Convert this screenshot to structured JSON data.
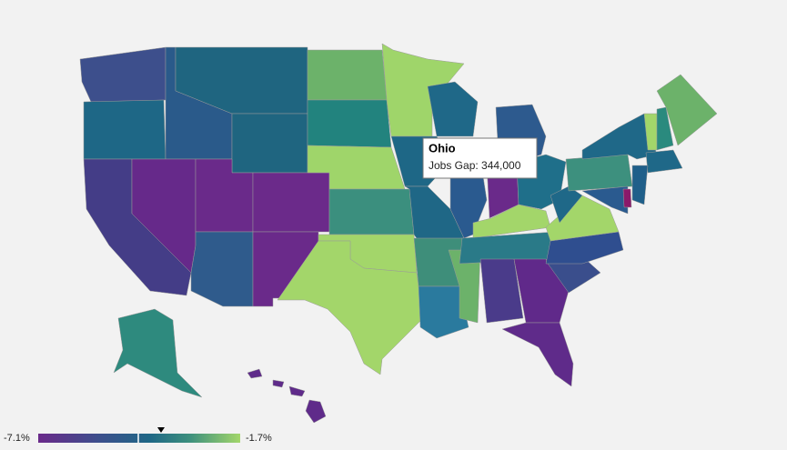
{
  "tooltip": {
    "title": "Ohio",
    "text": "Jobs Gap: 344,000"
  },
  "legend": {
    "min_label": "-7.1%",
    "max_label": "-1.7%"
  }
}
